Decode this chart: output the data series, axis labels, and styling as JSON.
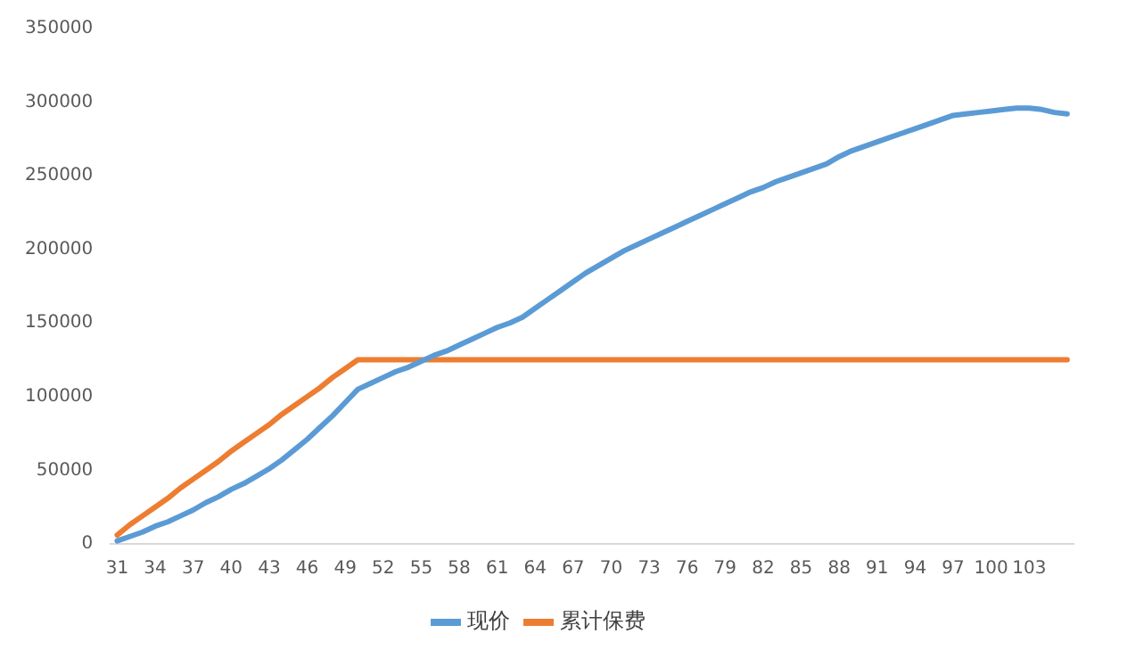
{
  "chart_data": {
    "type": "line",
    "categories": [
      "31",
      null,
      null,
      "34",
      null,
      null,
      "37",
      null,
      null,
      "40",
      null,
      null,
      "43",
      null,
      null,
      "46",
      null,
      null,
      "49",
      null,
      null,
      "52",
      null,
      null,
      "55",
      null,
      null,
      "58",
      null,
      null,
      "61",
      null,
      null,
      "64",
      null,
      null,
      "67",
      null,
      null,
      "70",
      null,
      null,
      "73",
      null,
      null,
      "76",
      null,
      null,
      "79",
      null,
      null,
      "82",
      null,
      null,
      "85",
      null,
      null,
      "88",
      null,
      null,
      "91",
      null,
      null,
      "94",
      null,
      null,
      "97",
      null,
      null,
      "100",
      null,
      null,
      "103",
      null,
      null,
      null
    ],
    "series": [
      {
        "name": "现价",
        "color": "#5b9bd5",
        "values": [
          2000,
          5000,
          8000,
          12000,
          15000,
          19000,
          23000,
          28000,
          32000,
          37000,
          41000,
          46000,
          51000,
          57000,
          64000,
          71000,
          79000,
          87000,
          96000,
          105000,
          109000,
          113000,
          117000,
          120000,
          124000,
          128000,
          131000,
          135000,
          139000,
          143000,
          147000,
          150000,
          154000,
          160000,
          166000,
          172000,
          178000,
          184000,
          189000,
          194000,
          199000,
          203000,
          207000,
          211000,
          215000,
          219000,
          223000,
          227000,
          231000,
          235000,
          239000,
          242000,
          246000,
          249000,
          252000,
          255000,
          258000,
          263000,
          267000,
          270000,
          273000,
          276000,
          279000,
          282000,
          285000,
          288000,
          291000,
          292000,
          293000,
          294000,
          295000,
          296000,
          296000,
          295000,
          293000,
          292000
        ]
      },
      {
        "name": "累计保费",
        "color": "#ed7d31",
        "values": [
          6000,
          13000,
          19000,
          25000,
          31000,
          38000,
          44000,
          50000,
          56000,
          63000,
          69000,
          75000,
          81000,
          88000,
          94000,
          100000,
          106000,
          113000,
          119000,
          125000,
          125000,
          125000,
          125000,
          125000,
          125000,
          125000,
          125000,
          125000,
          125000,
          125000,
          125000,
          125000,
          125000,
          125000,
          125000,
          125000,
          125000,
          125000,
          125000,
          125000,
          125000,
          125000,
          125000,
          125000,
          125000,
          125000,
          125000,
          125000,
          125000,
          125000,
          125000,
          125000,
          125000,
          125000,
          125000,
          125000,
          125000,
          125000,
          125000,
          125000,
          125000,
          125000,
          125000,
          125000,
          125000,
          125000,
          125000,
          125000,
          125000,
          125000,
          125000,
          125000,
          125000,
          125000,
          125000,
          125000
        ]
      }
    ],
    "ylim": [
      0,
      350000
    ],
    "yticks": [
      0,
      50000,
      100000,
      150000,
      200000,
      250000,
      300000,
      350000
    ],
    "grid": false,
    "legend": "bottom",
    "marker": "none",
    "line_style": "solid"
  }
}
